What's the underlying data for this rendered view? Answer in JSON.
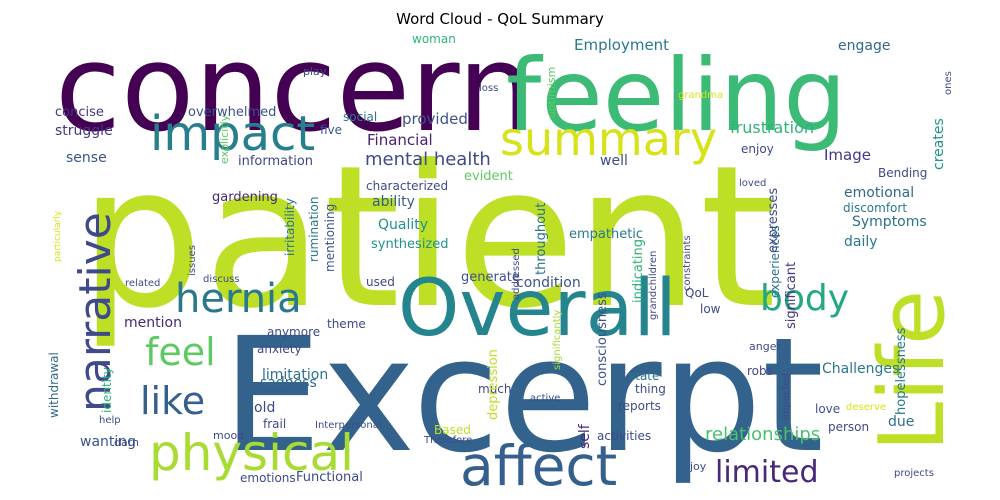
{
  "chart_data": {
    "type": "wordcloud",
    "title": "Word Cloud - QoL Summary",
    "words": [
      {
        "text": "patient",
        "color": "#bddf26"
      },
      {
        "text": "Excerpt",
        "color": "#33638d"
      },
      {
        "text": "concern",
        "color": "#440154"
      },
      {
        "text": "feeling",
        "color": "#3bbb75"
      },
      {
        "text": "Overall",
        "color": "#25858e"
      },
      {
        "text": "Life",
        "color": "#bddf26"
      },
      {
        "text": "affect",
        "color": "#355f8d"
      },
      {
        "text": "physical",
        "color": "#a8db34"
      },
      {
        "text": "impact",
        "color": "#277f8e"
      },
      {
        "text": "summary",
        "color": "#d8e219"
      },
      {
        "text": "narrative",
        "color": "#3e4a89"
      },
      {
        "text": "hernia",
        "color": "#2a788e"
      },
      {
        "text": "like",
        "color": "#355f8d"
      },
      {
        "text": "feel",
        "color": "#5ec962"
      },
      {
        "text": "body",
        "color": "#22a884"
      },
      {
        "text": "limited",
        "color": "#482878"
      },
      {
        "text": "mental health",
        "color": "#3e4a89"
      },
      {
        "text": "frustration",
        "color": "#2fb47c"
      },
      {
        "text": "relationships",
        "color": "#4ac16d"
      },
      {
        "text": "Employment",
        "color": "#2a788e"
      },
      {
        "text": "engage",
        "color": "#31688e"
      },
      {
        "text": "provided",
        "color": "#3b528b"
      },
      {
        "text": "Financial",
        "color": "#482173"
      },
      {
        "text": "Quality",
        "color": "#21918c"
      },
      {
        "text": "ability",
        "color": "#355f8d"
      },
      {
        "text": "Symptoms",
        "color": "#2c728e"
      },
      {
        "text": "emotional",
        "color": "#31688e"
      },
      {
        "text": "Image",
        "color": "#453781"
      },
      {
        "text": "daily",
        "color": "#2a788e"
      },
      {
        "text": "creates",
        "color": "#21918c"
      },
      {
        "text": "Challenges",
        "color": "#2a788e"
      },
      {
        "text": "condition",
        "color": "#3b528b"
      },
      {
        "text": "wanting",
        "color": "#39568c"
      },
      {
        "text": "sadness",
        "color": "#31688e"
      },
      {
        "text": "limitation",
        "color": "#2c728e"
      },
      {
        "text": "mention",
        "color": "#482878"
      },
      {
        "text": "old",
        "color": "#3e4a89"
      },
      {
        "text": "due",
        "color": "#2e6f8e"
      },
      {
        "text": "self",
        "color": "#482878"
      },
      {
        "text": "well",
        "color": "#3e4a89"
      },
      {
        "text": "sense",
        "color": "#3b528b"
      },
      {
        "text": "struggle",
        "color": "#453781"
      },
      {
        "text": "concise",
        "color": "#463480"
      },
      {
        "text": "overwhelmed",
        "color": "#3b528b"
      },
      {
        "text": "gardening",
        "color": "#482878"
      },
      {
        "text": "information",
        "color": "#404588"
      },
      {
        "text": "synthesized",
        "color": "#21918c"
      },
      {
        "text": "characterized",
        "color": "#3e4a89"
      },
      {
        "text": "evident",
        "color": "#5ec962"
      },
      {
        "text": "throughout",
        "color": "#2c728e"
      },
      {
        "text": "empathetic",
        "color": "#2a788e"
      },
      {
        "text": "generate",
        "color": "#3b528b"
      },
      {
        "text": "indicating",
        "color": "#2fb47c"
      },
      {
        "text": "enjoy",
        "color": "#3e4a89"
      },
      {
        "text": "experiences",
        "color": "#2c728e"
      },
      {
        "text": "significant",
        "color": "#453781"
      },
      {
        "text": "expresses",
        "color": "#3e4a89"
      },
      {
        "text": "discomfort",
        "color": "#2a788e"
      },
      {
        "text": "Bending",
        "color": "#3e4a89"
      },
      {
        "text": "hopelessness",
        "color": "#2a788e"
      },
      {
        "text": "consciousness",
        "color": "#3b528b"
      },
      {
        "text": "activities",
        "color": "#3e4a89"
      },
      {
        "text": "reports",
        "color": "#3e4a89"
      },
      {
        "text": "thing",
        "color": "#3e4a89"
      },
      {
        "text": "state",
        "color": "#2c728e"
      },
      {
        "text": "robs",
        "color": "#3e4a89"
      },
      {
        "text": "love",
        "color": "#3b528b"
      },
      {
        "text": "person",
        "color": "#3e4a89"
      },
      {
        "text": "anger",
        "color": "#3e4a89"
      },
      {
        "text": "low",
        "color": "#3e4a89"
      },
      {
        "text": "QoL",
        "color": "#3e4a89"
      },
      {
        "text": "much",
        "color": "#3e4a89"
      },
      {
        "text": "depression",
        "color": "#bddf26"
      },
      {
        "text": "anxiety",
        "color": "#3e4a89"
      },
      {
        "text": "anymore",
        "color": "#3e4a89"
      },
      {
        "text": "theme",
        "color": "#3e4a89"
      },
      {
        "text": "used",
        "color": "#3e4a89"
      },
      {
        "text": "identity",
        "color": "#2fb47c"
      },
      {
        "text": "withdrawal",
        "color": "#31688e"
      },
      {
        "text": "frail",
        "color": "#3e4a89"
      },
      {
        "text": "mood",
        "color": "#3e4a89"
      },
      {
        "text": "darn",
        "color": "#3e4a89"
      },
      {
        "text": "help",
        "color": "#3e4a89"
      },
      {
        "text": "emotions",
        "color": "#3e4a89"
      },
      {
        "text": "Functional",
        "color": "#3e4a89"
      },
      {
        "text": "Interpersonal",
        "color": "#3e4a89"
      },
      {
        "text": "Based",
        "color": "#bddf26"
      },
      {
        "text": "Therefore",
        "color": "#3e4a89"
      },
      {
        "text": "woman",
        "color": "#2fb47c"
      },
      {
        "text": "social",
        "color": "#2a788e"
      },
      {
        "text": "five",
        "color": "#3b528b"
      },
      {
        "text": "irritability",
        "color": "#2c728e"
      },
      {
        "text": "rumination",
        "color": "#2a788e"
      },
      {
        "text": "mentioning",
        "color": "#3b528b"
      },
      {
        "text": "explicitly",
        "color": "#5ec962"
      },
      {
        "text": "play",
        "color": "#3e4a89"
      },
      {
        "text": "loss",
        "color": "#3e4a89"
      },
      {
        "text": "optimism",
        "color": "#5ec962"
      },
      {
        "text": "grandma",
        "color": "#d8e219"
      },
      {
        "text": "ones",
        "color": "#3e4a89"
      },
      {
        "text": "particularly",
        "color": "#d8e219"
      },
      {
        "text": "issues",
        "color": "#3e4a89"
      },
      {
        "text": "related",
        "color": "#3e4a89"
      },
      {
        "text": "discuss",
        "color": "#3e4a89"
      },
      {
        "text": "addressed",
        "color": "#3e4a89"
      },
      {
        "text": "grandchildren",
        "color": "#3e4a89"
      },
      {
        "text": "constraints",
        "color": "#3e4a89"
      },
      {
        "text": "significantly",
        "color": "#a8db34"
      },
      {
        "text": "impacted",
        "color": "#3e4a89"
      },
      {
        "text": "deserve",
        "color": "#d8e219"
      },
      {
        "text": "active",
        "color": "#3e4a89"
      },
      {
        "text": "loved",
        "color": "#3e4a89"
      },
      {
        "text": "joy",
        "color": "#3e4a89"
      },
      {
        "text": "projects",
        "color": "#3e4a89"
      }
    ]
  }
}
